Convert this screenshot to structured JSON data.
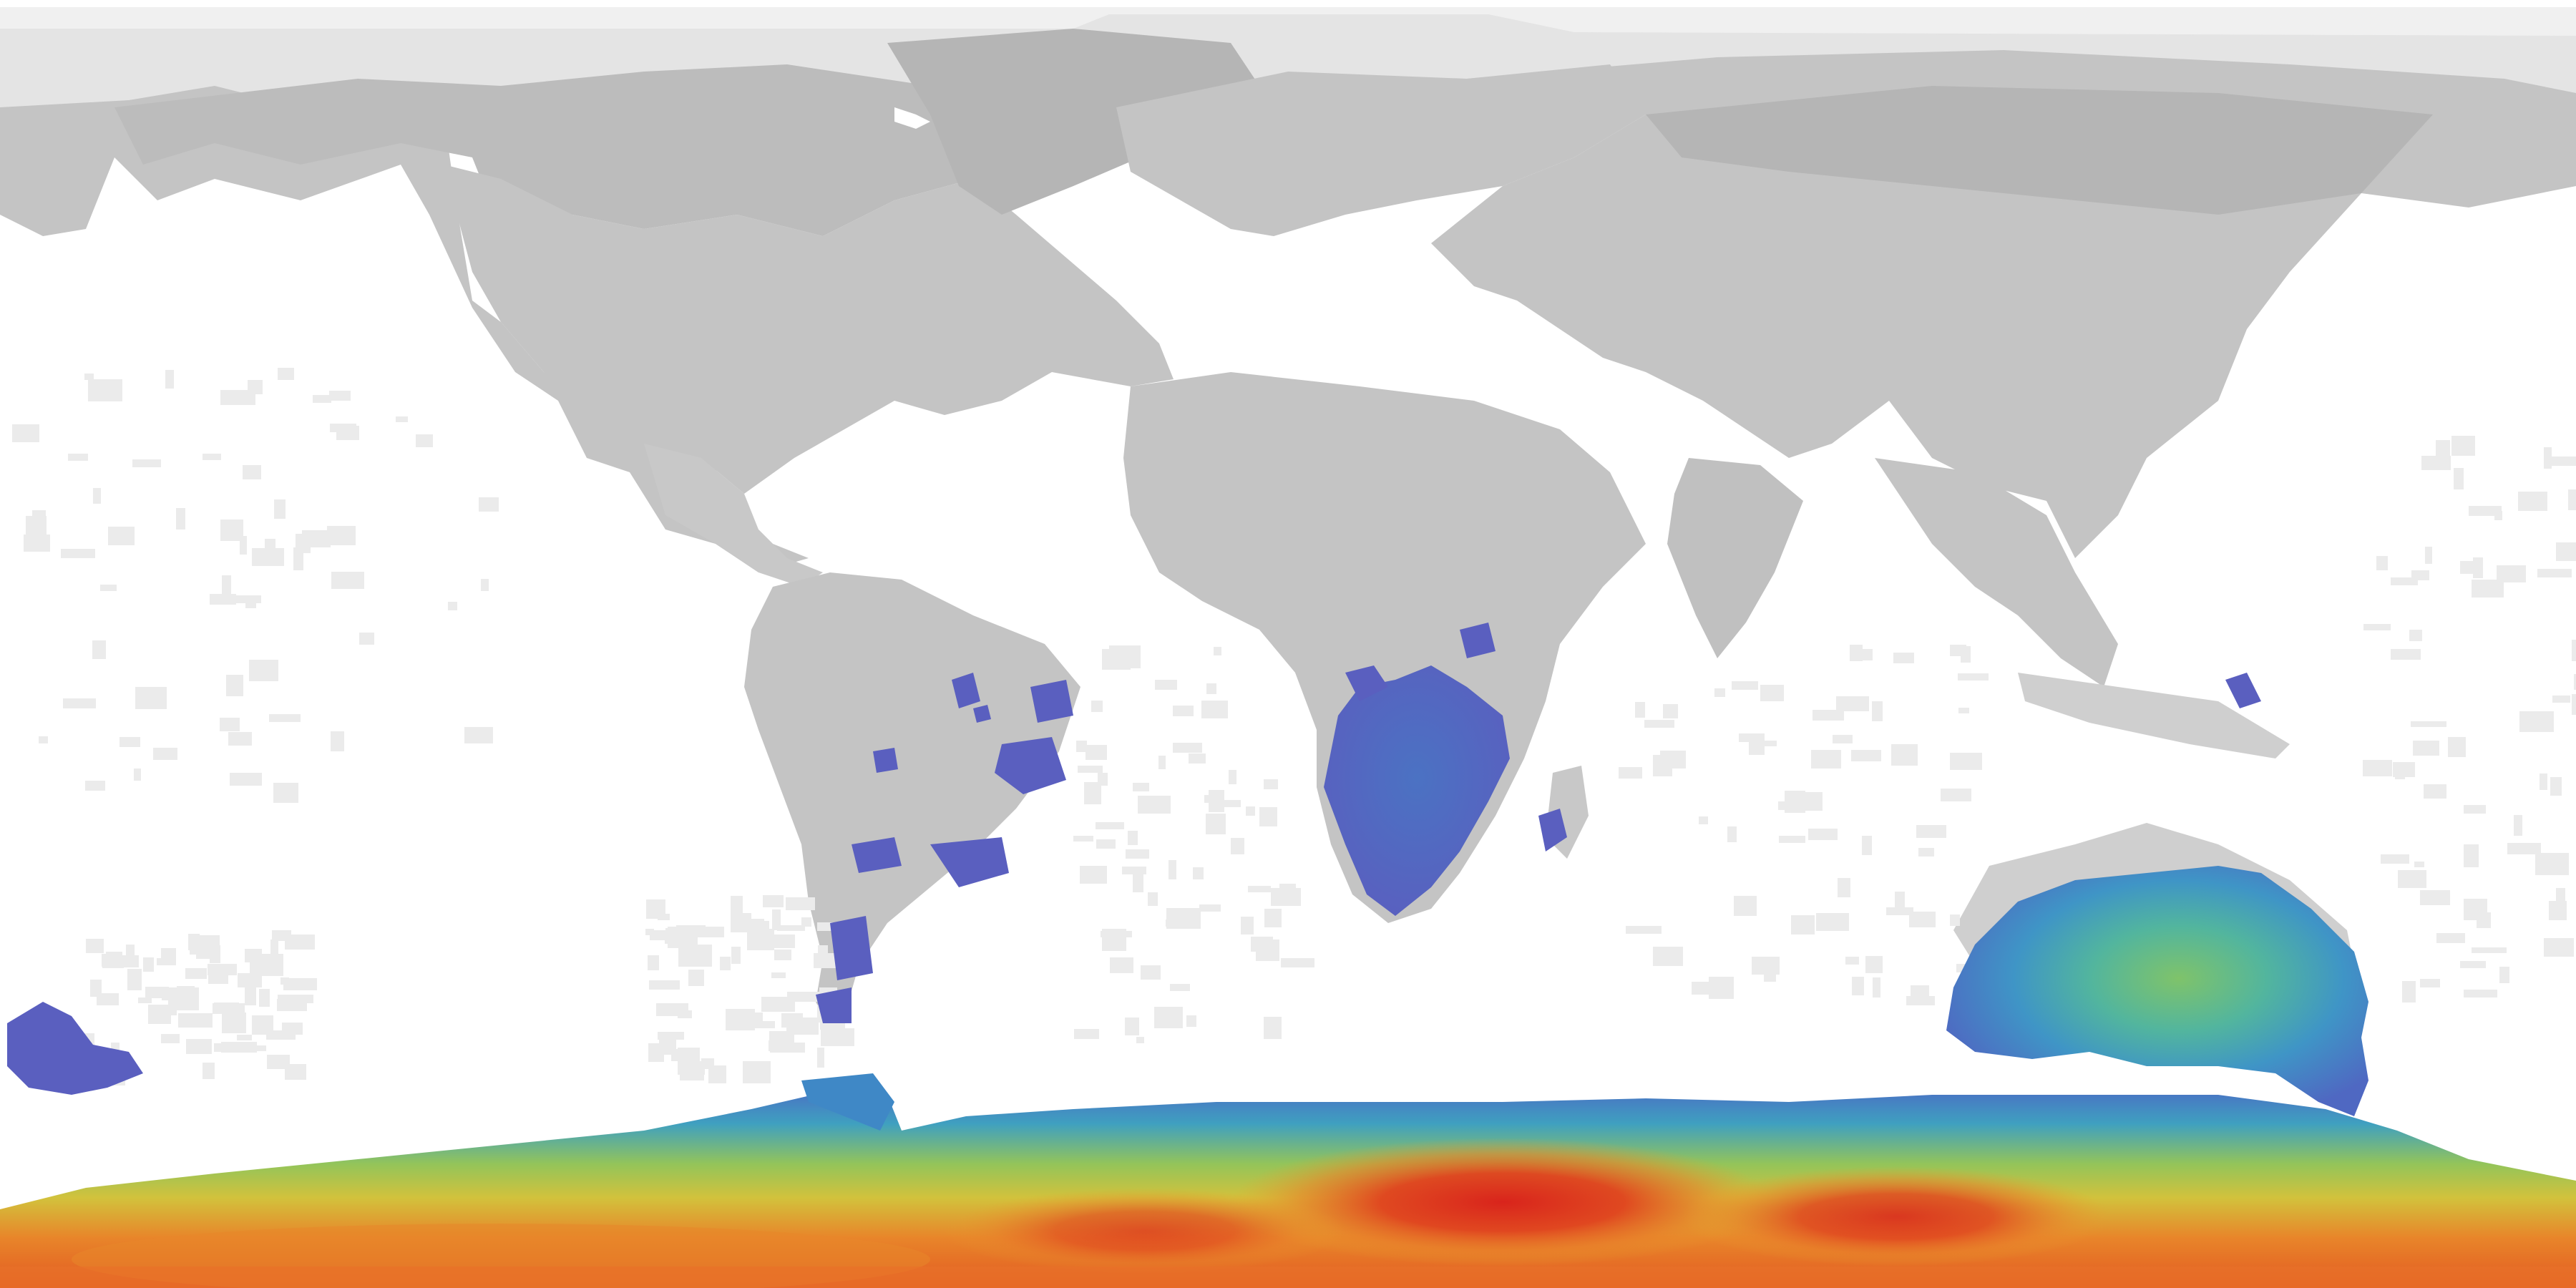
{
  "map": {
    "projection": "equirectangular",
    "extent": {
      "lon": [
        -180,
        180
      ],
      "lat": [
        -90,
        90
      ]
    },
    "colors": {
      "background": "#ffffff",
      "sparse_ocean": "#ececec",
      "light_land": "#e0e0e0",
      "land": "#c4c4c4",
      "dark_land": "#b8b8b8",
      "polar_light": "#f2f2f2"
    },
    "colormap": [
      "#5a5fbf",
      "#4a7cc4",
      "#3fa0c0",
      "#57b89a",
      "#93c45a",
      "#d2c23c",
      "#e9a02e",
      "#e8702a",
      "#e04323",
      "#d9281e"
    ],
    "overlay_description_names": [
      "southern-ocean-band",
      "australia-heat-region",
      "southern-africa-region",
      "south-america-patches",
      "new-zealand-patch"
    ]
  }
}
